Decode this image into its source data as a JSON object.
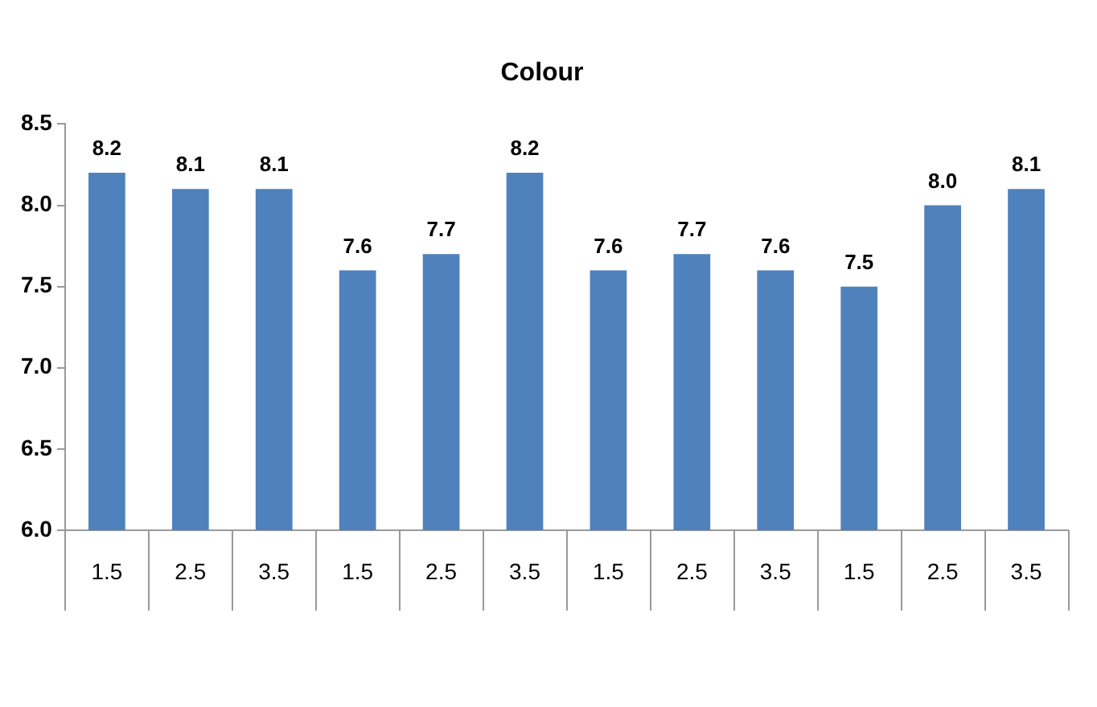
{
  "chart_data": {
    "type": "bar",
    "title": "Colour",
    "categories": [
      "1.5",
      "2.5",
      "3.5",
      "1.5",
      "2.5",
      "3.5",
      "1.5",
      "2.5",
      "3.5",
      "1.5",
      "2.5",
      "3.5"
    ],
    "values": [
      8.2,
      8.1,
      8.1,
      7.6,
      7.7,
      8.2,
      7.6,
      7.7,
      7.6,
      7.5,
      8.0,
      8.1
    ],
    "value_labels": [
      "8.2",
      "8.1",
      "8.1",
      "7.6",
      "7.7",
      "8.2",
      "7.6",
      "7.7",
      "7.6",
      "7.5",
      "8.0",
      "8.1"
    ],
    "color": "#4f81bd",
    "ylim": [
      6,
      8.5
    ],
    "yticks": [
      {
        "value": 6,
        "label": "6.0"
      },
      {
        "value": 6.5,
        "label": "6.5"
      },
      {
        "value": 7,
        "label": "7.0"
      },
      {
        "value": 7.5,
        "label": "7.5"
      },
      {
        "value": 8,
        "label": "8.0"
      },
      {
        "value": 8.5,
        "label": "8.5"
      }
    ],
    "grid": false,
    "legend": false
  }
}
